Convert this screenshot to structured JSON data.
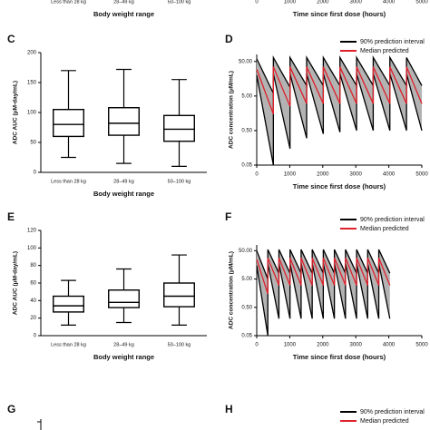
{
  "chart_data": [
    {
      "type": "box",
      "categories": [
        "Less than 28 kg",
        "28–49 kg",
        "50–100 kg"
      ],
      "x_label": "Body weight range"
    },
    {
      "type": "line",
      "xlim": [
        0,
        5000
      ],
      "xticks": [
        0,
        1000,
        2000,
        3000,
        4000,
        5000
      ],
      "x_label": "Time since first dose (hours)"
    },
    {
      "type": "box",
      "panel": "C",
      "categories": [
        "Less than 28 kg",
        "28–49 kg",
        "50–100 kg"
      ],
      "x_label": "Body weight range",
      "y_label": "ADC AUC (μM-day/mL)",
      "ylim": [
        0,
        200
      ],
      "yticks": [
        0,
        50,
        100,
        150,
        200
      ],
      "boxes": [
        {
          "whislo": 25,
          "q1": 60,
          "med": 80,
          "q3": 105,
          "whishi": 170
        },
        {
          "whislo": 15,
          "q1": 62,
          "med": 82,
          "q3": 108,
          "whishi": 172
        },
        {
          "whislo": 10,
          "q1": 52,
          "med": 72,
          "q3": 95,
          "whishi": 155
        }
      ]
    },
    {
      "type": "line",
      "panel": "D",
      "x_label": "Time since first dose (hours)",
      "y_label": "ADC concentration (μM/mL)",
      "log_y": true,
      "legend": true,
      "xlim": [
        0,
        5000
      ],
      "xticks": [
        0,
        1000,
        2000,
        3000,
        4000,
        5000
      ],
      "ylim": [
        0.05,
        80
      ],
      "yticks": [
        0.05,
        {
          "value": 0.5,
          "label": "0.50"
        },
        {
          "value": 5,
          "label": "5.00"
        },
        {
          "value": 50,
          "label": "50.00"
        }
      ],
      "x": [
        0,
        504,
        504,
        1008,
        1008,
        1512,
        1512,
        2016,
        2016,
        2520,
        2520,
        3024,
        3024,
        3528,
        3528,
        4032,
        4032,
        4536,
        4536,
        5000
      ],
      "series": [
        {
          "name": "90% prediction interval",
          "color": "#000000",
          "fill": "#b3b3b3",
          "upper": [
            60,
            6,
            65,
            9,
            65,
            10,
            65,
            10,
            65,
            10,
            65,
            10,
            65,
            10,
            65,
            10,
            65,
            10,
            65,
            10
          ],
          "lower": [
            20,
            0.05,
            22,
            0.15,
            22,
            0.3,
            22,
            0.4,
            22,
            0.45,
            22,
            0.5,
            22,
            0.5,
            22,
            0.5,
            22,
            0.5,
            22,
            0.5
          ]
        },
        {
          "name": "Median predicted",
          "color": "#e0202a",
          "values": [
            30,
            1.5,
            35,
            2.5,
            35,
            3,
            35,
            3,
            35,
            3,
            35,
            3,
            35,
            3,
            35,
            3,
            35,
            3,
            35,
            3
          ]
        }
      ]
    },
    {
      "type": "box",
      "panel": "E",
      "categories": [
        "Less than 28 kg",
        "28–49 kg",
        "50–100 kg"
      ],
      "x_label": "Body weight range",
      "y_label": "ADC AUC (μM-day/mL)",
      "ylim": [
        0,
        120
      ],
      "yticks": [
        0,
        20,
        40,
        60,
        80,
        100,
        120
      ],
      "boxes": [
        {
          "whislo": 12,
          "q1": 27,
          "med": 34,
          "q3": 45,
          "whishi": 63
        },
        {
          "whislo": 15,
          "q1": 32,
          "med": 38,
          "q3": 52,
          "whishi": 76
        },
        {
          "whislo": 12,
          "q1": 33,
          "med": 45,
          "q3": 60,
          "whishi": 92
        }
      ]
    },
    {
      "type": "line",
      "panel": "F",
      "x_label": "Time since first dose (hours)",
      "y_label": "ADC concentration (μM/mL)",
      "log_y": true,
      "legend": true,
      "xlim": [
        0,
        5000
      ],
      "xticks": [
        0,
        1000,
        2000,
        3000,
        4000,
        5000
      ],
      "ylim": [
        0.05,
        80
      ],
      "yticks": [
        0.05,
        {
          "value": 0.5,
          "label": "0.50"
        },
        {
          "value": 5,
          "label": "5.00"
        },
        {
          "value": 50,
          "label": "50.00"
        }
      ],
      "x": [
        0,
        336,
        336,
        672,
        672,
        1008,
        1008,
        1344,
        1344,
        1680,
        1680,
        2016,
        2016,
        2352,
        2352,
        2688,
        2688,
        3024,
        3024,
        3360,
        3360,
        3696,
        3696,
        4032
      ],
      "series": [
        {
          "name": "90% prediction interval",
          "color": "#000000",
          "fill": "#b3b3b3",
          "upper": [
            50,
            5,
            55,
            8,
            55,
            8,
            55,
            8,
            55,
            8,
            55,
            8,
            55,
            8,
            55,
            8,
            55,
            8,
            55,
            8,
            55,
            8,
            55,
            8
          ],
          "lower": [
            15,
            0.05,
            18,
            0.2,
            18,
            0.2,
            18,
            0.2,
            18,
            0.2,
            18,
            0.2,
            18,
            0.2,
            18,
            0.2,
            18,
            0.2,
            18,
            0.2,
            18,
            0.2,
            18,
            0.2
          ]
        },
        {
          "name": "Median predicted",
          "color": "#e0202a",
          "values": [
            25,
            1.5,
            28,
            3,
            28,
            3,
            28,
            3,
            28,
            3,
            28,
            3,
            28,
            3,
            28,
            3,
            28,
            3,
            28,
            3,
            28,
            3,
            28,
            3
          ]
        }
      ]
    },
    {
      "type": "box",
      "panel": "G"
    },
    {
      "type": "line",
      "panel": "H",
      "legend": true,
      "series": [
        {
          "name": "90% prediction interval",
          "color": "#000000"
        },
        {
          "name": "Median predicted",
          "color": "#e0202a"
        }
      ]
    }
  ]
}
